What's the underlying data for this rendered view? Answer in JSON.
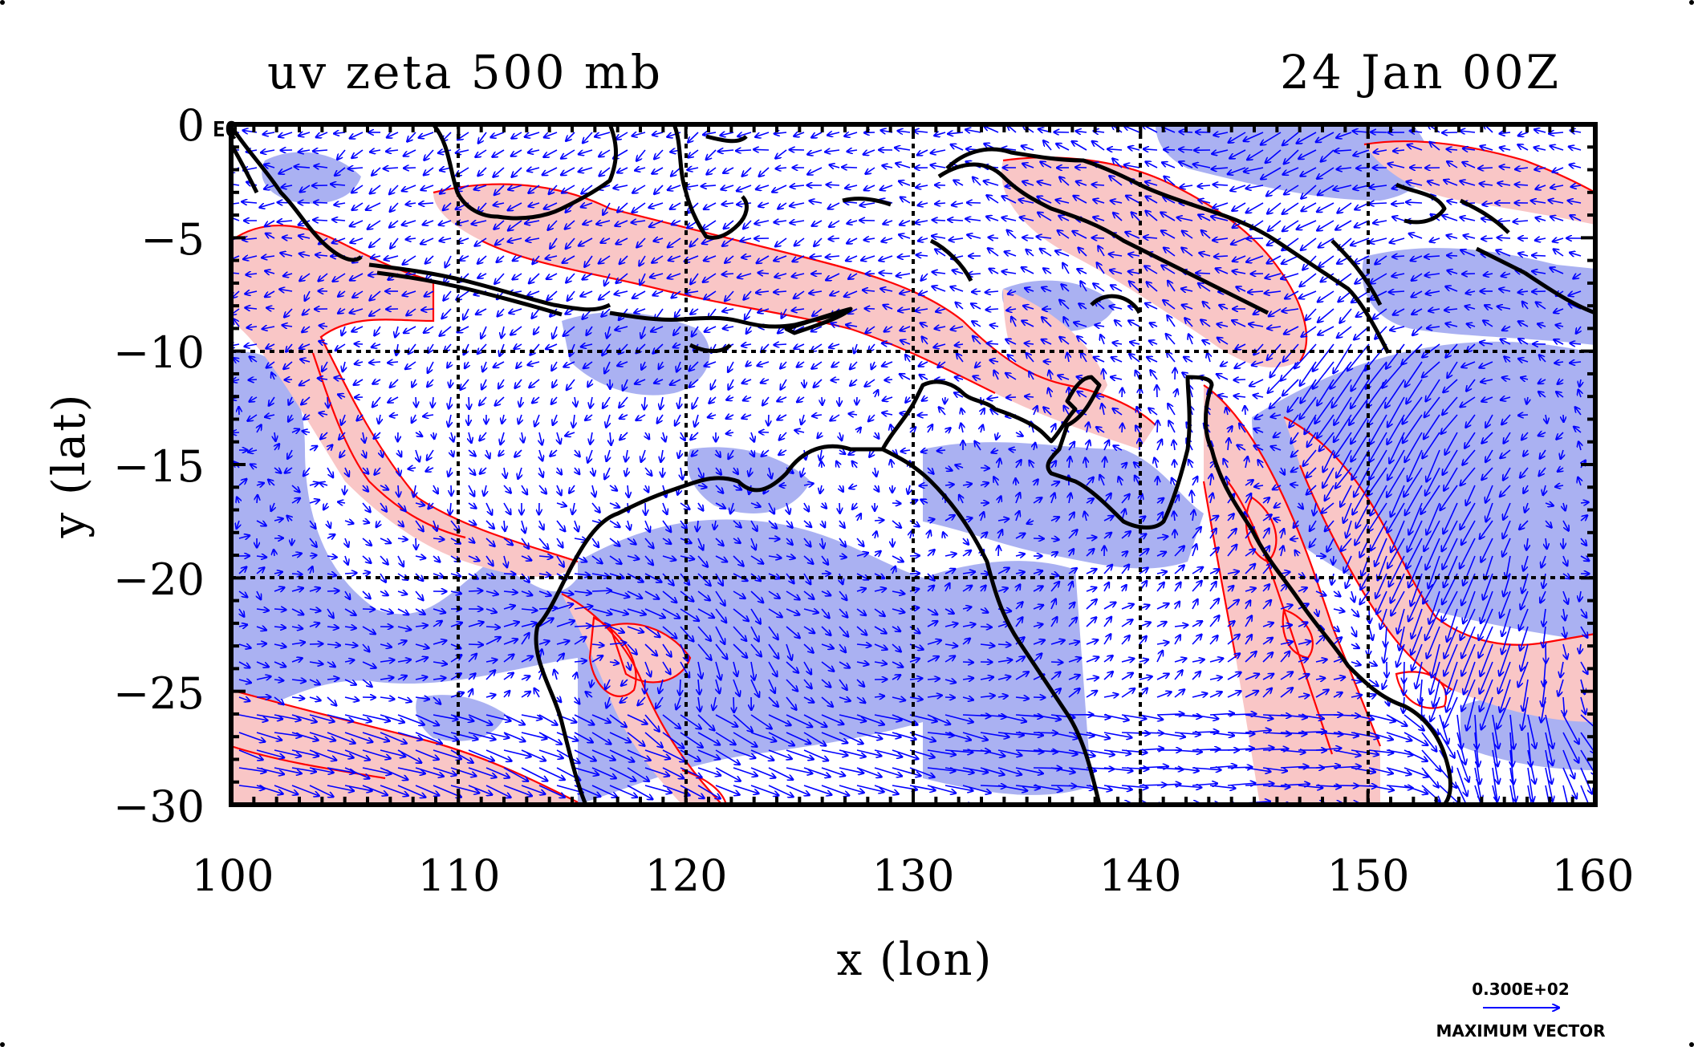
{
  "figure": {
    "title_left": "uv zeta 500 mb",
    "title_right": "24 Jan 00Z",
    "corner_label": "EQ"
  },
  "chart_data": {
    "type": "map",
    "xlabel": "x (lon)",
    "ylabel": "y (lat)",
    "xlim": [
      100,
      160
    ],
    "ylim": [
      -30,
      0
    ],
    "x_ticks": [
      "100",
      "110",
      "120",
      "130",
      "140",
      "150",
      "160"
    ],
    "y_ticks": [
      "0",
      "−5",
      "−10",
      "−15",
      "−20",
      "−25",
      "−30"
    ],
    "grid": true,
    "grid_lon": [
      110,
      120,
      130,
      140,
      150
    ],
    "grid_lat": [
      -10,
      -20
    ],
    "fields": [
      {
        "name": "zeta",
        "kind": "filled-contour",
        "negative_color": "#aab1f2",
        "positive_color": "#f9c6c6",
        "contour_color": "#ff0000"
      },
      {
        "name": "uv",
        "kind": "vectors",
        "color": "#0000ff"
      }
    ],
    "coastline_color": "#000000"
  },
  "legend": {
    "vector_magnitude": "0.300E+02",
    "vector_caption": "MAXIMUM VECTOR",
    "vector_color": "#0000ff",
    "position": "bottom-right"
  }
}
